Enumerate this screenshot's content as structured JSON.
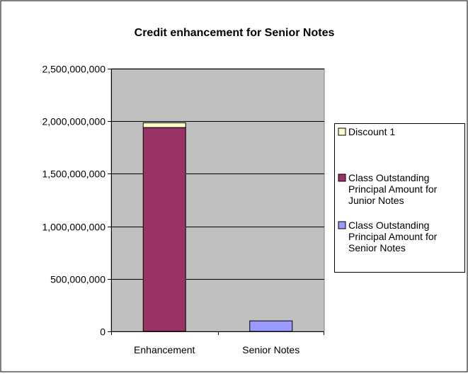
{
  "chart_data": {
    "type": "bar",
    "stacked": true,
    "title": "Credit enhancement for Senior Notes",
    "categories": [
      "Enhancement",
      "Senior Notes"
    ],
    "series": [
      {
        "name": "Class Outstanding Principal Amount for Senior Notes",
        "values": [
          0,
          100000000
        ],
        "color": "#9999FF"
      },
      {
        "name": "Class Outstanding Principal Amount for Junior Notes",
        "values": [
          1940000000,
          0
        ],
        "color": "#993366"
      },
      {
        "name": "Discount 1",
        "values": [
          45000000,
          0
        ],
        "color": "#FFFFCC"
      }
    ],
    "legend_order": [
      2,
      1,
      0
    ],
    "ylim": [
      0,
      2500000000
    ],
    "yticks": [
      0,
      500000000,
      1000000000,
      1500000000,
      2000000000,
      2500000000
    ],
    "ytick_labels": [
      "0",
      "500,000,000",
      "1,000,000,000",
      "1,500,000,000",
      "2,000,000,000",
      "2,500,000,000"
    ],
    "grid": true,
    "plot_background": "#C0C0C0",
    "legend_position": "right"
  }
}
